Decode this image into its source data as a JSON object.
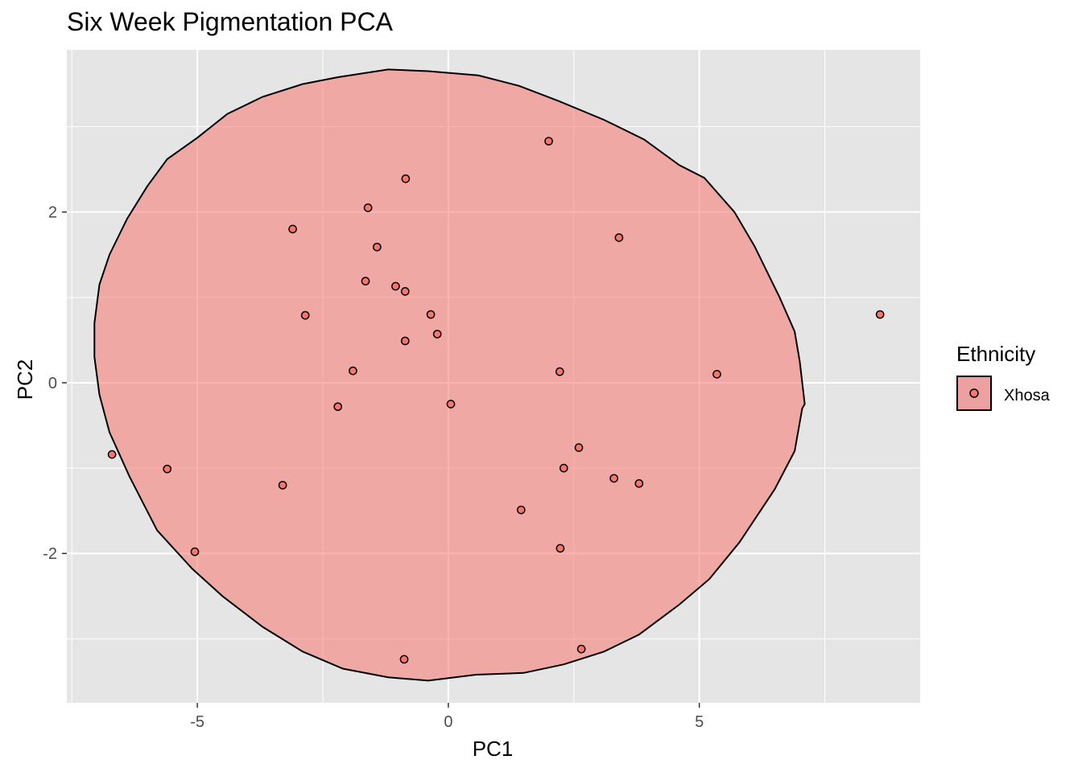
{
  "chart_data": {
    "type": "scatter",
    "title": "Six Week Pigmentation PCA",
    "xlabel": "PC1",
    "ylabel": "PC2",
    "xlim": [
      -7.6,
      9.4
    ],
    "ylim": [
      -3.75,
      3.9
    ],
    "x_ticks": [
      -5,
      0,
      5
    ],
    "x_tick_labels": [
      "-5",
      "0",
      "5"
    ],
    "y_ticks": [
      -2,
      0,
      2
    ],
    "y_tick_labels": [
      "-2",
      "0",
      "2"
    ],
    "grid": true,
    "background": "#e5e5e5",
    "grid_color": "#ffffff",
    "legend": {
      "title": "Ethnicity",
      "position": "right"
    },
    "series": [
      {
        "name": "Xhosa",
        "color": "#f8766d",
        "fill": "#eca0a0",
        "points": [
          [
            -6.7,
            -0.84
          ],
          [
            -5.6,
            -1.01
          ],
          [
            -5.05,
            -1.98
          ],
          [
            -3.3,
            -1.2
          ],
          [
            -3.1,
            1.8
          ],
          [
            -2.85,
            0.79
          ],
          [
            -2.2,
            -0.28
          ],
          [
            -1.9,
            0.14
          ],
          [
            -1.65,
            1.19
          ],
          [
            -1.6,
            2.05
          ],
          [
            -1.42,
            1.59
          ],
          [
            -1.05,
            1.13
          ],
          [
            -0.86,
            1.07
          ],
          [
            -0.86,
            0.49
          ],
          [
            -0.85,
            2.39
          ],
          [
            -0.88,
            -3.24
          ],
          [
            -0.35,
            0.8
          ],
          [
            -0.22,
            0.57
          ],
          [
            0.05,
            -0.25
          ],
          [
            1.45,
            -1.49
          ],
          [
            2.0,
            2.83
          ],
          [
            2.22,
            0.13
          ],
          [
            2.23,
            -1.94
          ],
          [
            2.3,
            -1.0
          ],
          [
            2.6,
            -0.76
          ],
          [
            2.65,
            -3.12
          ],
          [
            3.3,
            -1.12
          ],
          [
            3.4,
            1.7
          ],
          [
            3.8,
            -1.18
          ],
          [
            5.35,
            0.1
          ],
          [
            8.6,
            0.8
          ]
        ],
        "ellipse": [
          [
            0.55,
            -3.42
          ],
          [
            1.5,
            -3.4
          ],
          [
            2.3,
            -3.3
          ],
          [
            3.1,
            -3.15
          ],
          [
            3.8,
            -2.95
          ],
          [
            4.6,
            -2.6
          ],
          [
            5.2,
            -2.3
          ],
          [
            5.8,
            -1.87
          ],
          [
            6.5,
            -1.25
          ],
          [
            6.9,
            -0.8
          ],
          [
            7.05,
            -0.3
          ],
          [
            7.1,
            -0.25
          ],
          [
            7.0,
            0.25
          ],
          [
            6.9,
            0.6
          ],
          [
            6.6,
            1.0
          ],
          [
            6.1,
            1.6
          ],
          [
            5.7,
            2.0
          ],
          [
            5.1,
            2.4
          ],
          [
            4.6,
            2.55
          ],
          [
            3.9,
            2.85
          ],
          [
            3.1,
            3.08
          ],
          [
            2.2,
            3.3
          ],
          [
            1.4,
            3.48
          ],
          [
            0.6,
            3.6
          ],
          [
            -0.4,
            3.65
          ],
          [
            -1.2,
            3.67
          ],
          [
            -2.2,
            3.58
          ],
          [
            -2.9,
            3.5
          ],
          [
            -3.7,
            3.35
          ],
          [
            -4.4,
            3.15
          ],
          [
            -5.0,
            2.87
          ],
          [
            -5.6,
            2.62
          ],
          [
            -6.0,
            2.3
          ],
          [
            -6.4,
            1.92
          ],
          [
            -6.75,
            1.5
          ],
          [
            -6.95,
            1.15
          ],
          [
            -7.05,
            0.7
          ],
          [
            -7.05,
            0.3
          ],
          [
            -6.95,
            -0.14
          ],
          [
            -6.75,
            -0.58
          ],
          [
            -6.35,
            -1.1
          ],
          [
            -5.8,
            -1.73
          ],
          [
            -5.1,
            -2.18
          ],
          [
            -4.5,
            -2.5
          ],
          [
            -3.7,
            -2.86
          ],
          [
            -2.9,
            -3.15
          ],
          [
            -2.1,
            -3.35
          ],
          [
            -1.2,
            -3.45
          ],
          [
            -0.4,
            -3.49
          ],
          [
            0.55,
            -3.42
          ]
        ]
      }
    ]
  }
}
